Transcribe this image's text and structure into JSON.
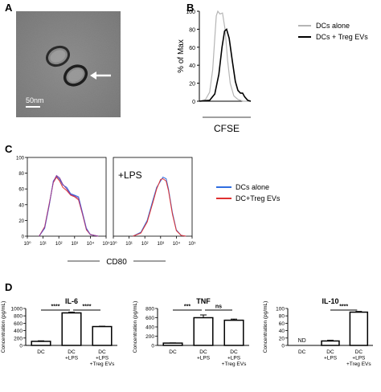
{
  "panels": {
    "A": "A",
    "B": "B",
    "C": "C",
    "D": "D"
  },
  "micrograph": {
    "scale_label": "50nm"
  },
  "chart_data": [
    {
      "type": "line",
      "panel": "B",
      "xlabel": "CFSE",
      "ylabel": "% of Max",
      "ylim": [
        0,
        100
      ],
      "yticks": [
        0,
        20,
        40,
        60,
        80,
        100
      ],
      "xscale": "log",
      "series": [
        {
          "name": "DCs alone",
          "color": "#b5b5b5",
          "points": [
            [
              0,
              0
            ],
            [
              0.12,
              2
            ],
            [
              0.2,
              10
            ],
            [
              0.26,
              35
            ],
            [
              0.3,
              70
            ],
            [
              0.33,
              95
            ],
            [
              0.36,
              100
            ],
            [
              0.4,
              97
            ],
            [
              0.45,
              98
            ],
            [
              0.5,
              80
            ],
            [
              0.55,
              45
            ],
            [
              0.6,
              20
            ],
            [
              0.67,
              6
            ],
            [
              0.75,
              2
            ],
            [
              0.85,
              0
            ],
            [
              1,
              0
            ]
          ]
        },
        {
          "name": "DCs + Treg EVs",
          "color": "#000000",
          "points": [
            [
              0,
              0
            ],
            [
              0.2,
              1
            ],
            [
              0.3,
              8
            ],
            [
              0.38,
              30
            ],
            [
              0.44,
              60
            ],
            [
              0.49,
              78
            ],
            [
              0.53,
              80
            ],
            [
              0.58,
              70
            ],
            [
              0.64,
              45
            ],
            [
              0.7,
              22
            ],
            [
              0.75,
              12
            ],
            [
              0.8,
              9
            ],
            [
              0.84,
              9
            ],
            [
              0.88,
              5
            ],
            [
              0.94,
              1
            ],
            [
              1,
              0
            ]
          ]
        }
      ]
    },
    {
      "type": "line",
      "panel": "C-left",
      "xlabel": "CD80",
      "ylim": [
        0,
        100
      ],
      "yticks": [
        0,
        20,
        40,
        60,
        80,
        100
      ],
      "xticks": [
        "10⁰",
        "10¹",
        "10²",
        "10³",
        "10⁴",
        "10⁵"
      ],
      "series": [
        {
          "name": "DCs alone",
          "color": "#2f6ee0",
          "points": [
            [
              0.15,
              0
            ],
            [
              0.22,
              10
            ],
            [
              0.28,
              40
            ],
            [
              0.33,
              70
            ],
            [
              0.37,
              76
            ],
            [
              0.41,
              72
            ],
            [
              0.45,
              65
            ],
            [
              0.5,
              62
            ],
            [
              0.55,
              54
            ],
            [
              0.6,
              52
            ],
            [
              0.65,
              50
            ],
            [
              0.7,
              30
            ],
            [
              0.75,
              10
            ],
            [
              0.8,
              2
            ],
            [
              0.9,
              0
            ]
          ]
        },
        {
          "name": "DC+Treg EVs",
          "color": "#e03030",
          "points": [
            [
              0.15,
              0
            ],
            [
              0.22,
              12
            ],
            [
              0.28,
              42
            ],
            [
              0.33,
              68
            ],
            [
              0.37,
              75
            ],
            [
              0.41,
              70
            ],
            [
              0.45,
              62
            ],
            [
              0.5,
              58
            ],
            [
              0.55,
              52
            ],
            [
              0.6,
              50
            ],
            [
              0.65,
              46
            ],
            [
              0.7,
              28
            ],
            [
              0.75,
              8
            ],
            [
              0.8,
              2
            ],
            [
              0.9,
              0
            ]
          ]
        },
        {
          "name": "",
          "color": "#8a3fa0",
          "points": [
            [
              0.15,
              0
            ],
            [
              0.22,
              11
            ],
            [
              0.28,
              41
            ],
            [
              0.33,
              69
            ],
            [
              0.37,
              77
            ],
            [
              0.41,
              74
            ],
            [
              0.45,
              66
            ],
            [
              0.5,
              60
            ],
            [
              0.55,
              53
            ],
            [
              0.6,
              51
            ],
            [
              0.65,
              48
            ],
            [
              0.7,
              29
            ],
            [
              0.75,
              9
            ],
            [
              0.8,
              2
            ],
            [
              0.9,
              0
            ]
          ]
        }
      ]
    },
    {
      "type": "line",
      "panel": "C-right",
      "annotation": "+LPS",
      "xticks": [
        "10⁰",
        "10¹",
        "10²",
        "10³",
        "10⁴",
        "10⁵"
      ],
      "ylim": [
        0,
        100
      ],
      "series": [
        {
          "name": "DCs alone",
          "color": "#2f6ee0",
          "points": [
            [
              0.25,
              0
            ],
            [
              0.35,
              5
            ],
            [
              0.43,
              20
            ],
            [
              0.5,
              45
            ],
            [
              0.55,
              62
            ],
            [
              0.6,
              70
            ],
            [
              0.63,
              75
            ],
            [
              0.67,
              73
            ],
            [
              0.7,
              60
            ],
            [
              0.75,
              30
            ],
            [
              0.8,
              8
            ],
            [
              0.86,
              1
            ],
            [
              0.92,
              0
            ]
          ]
        },
        {
          "name": "DC+Treg EVs",
          "color": "#e03030",
          "points": [
            [
              0.25,
              0
            ],
            [
              0.35,
              4
            ],
            [
              0.43,
              18
            ],
            [
              0.5,
              42
            ],
            [
              0.55,
              60
            ],
            [
              0.6,
              72
            ],
            [
              0.63,
              73
            ],
            [
              0.67,
              70
            ],
            [
              0.7,
              58
            ],
            [
              0.75,
              28
            ],
            [
              0.8,
              7
            ],
            [
              0.86,
              1
            ],
            [
              0.92,
              0
            ]
          ]
        }
      ]
    },
    {
      "type": "bar",
      "panel": "D-IL-6",
      "title": "IL-6",
      "ylabel": "Concentration (pg/mL)",
      "ylim": [
        0,
        1000
      ],
      "yticks": [
        0,
        200,
        400,
        600,
        800,
        1000
      ],
      "categories": [
        "DC",
        "DC\n+LPS",
        "DC\n+LPS\n+Treg EVs"
      ],
      "values": [
        110,
        880,
        510
      ],
      "errors": [
        15,
        20,
        10
      ],
      "significance": [
        {
          "from": 0,
          "to": 1,
          "label": "****"
        },
        {
          "from": 1,
          "to": 2,
          "label": "****"
        }
      ]
    },
    {
      "type": "bar",
      "panel": "D-TNF",
      "title": "TNF",
      "ylabel": "Concentration (pg/mL)",
      "ylim": [
        0,
        800
      ],
      "yticks": [
        0,
        200,
        400,
        600,
        800
      ],
      "categories": [
        "DC",
        "DC\n+LPS",
        "DC\n+LPS\n+Treg EVs"
      ],
      "values": [
        50,
        600,
        545
      ],
      "errors": [
        5,
        60,
        25
      ],
      "significance": [
        {
          "from": 0,
          "to": 1,
          "label": "***"
        },
        {
          "from": 1,
          "to": 2,
          "label": "ns"
        }
      ]
    },
    {
      "type": "bar",
      "panel": "D-IL-10",
      "title": "IL-10",
      "ylabel": "Concentration (pg/mL)",
      "ylim": [
        0,
        100
      ],
      "yticks": [
        0,
        20,
        40,
        60,
        80,
        100
      ],
      "categories": [
        "DC",
        "DC\n+LPS",
        "DC\n+LPS\n+Treg EVs"
      ],
      "values": [
        null,
        12,
        90
      ],
      "errors": [
        0,
        2,
        2
      ],
      "missing_label": "ND",
      "significance": [
        {
          "from": 1,
          "to": 2,
          "label": "****"
        }
      ]
    }
  ]
}
